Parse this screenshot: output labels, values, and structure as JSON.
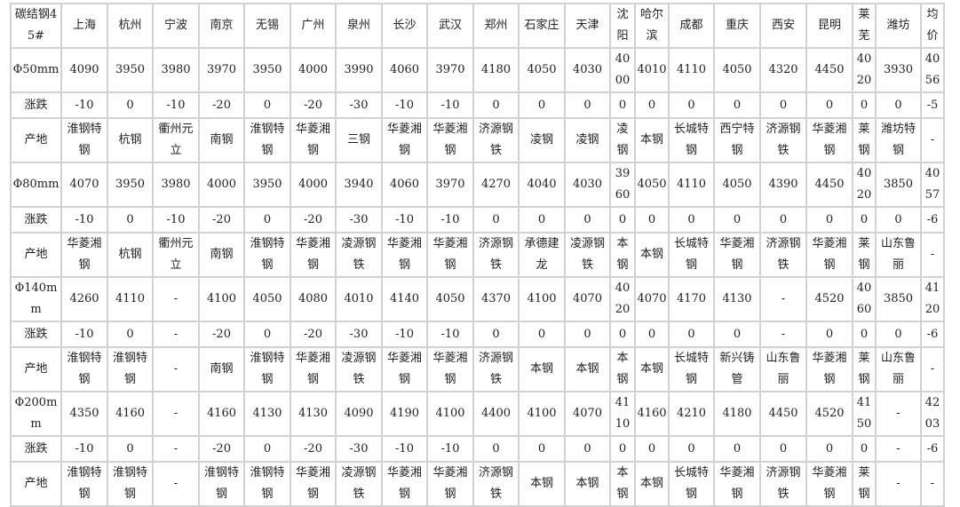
{
  "table": {
    "header": [
      "碳结钢45#",
      "上海",
      "杭州",
      "宁波",
      "南京",
      "无锡",
      "广州",
      "泉州",
      "长沙",
      "武汉",
      "郑州",
      "石家庄",
      "天津",
      "沈阳",
      "哈尔滨",
      "成都",
      "重庆",
      "西安",
      "昆明",
      "莱芜",
      "潍坊",
      "均价"
    ],
    "rows": [
      {
        "type": "price",
        "cells": [
          "Φ50mm",
          "4090",
          "3950",
          "3980",
          "3970",
          "3950",
          "4000",
          "3990",
          "4060",
          "3970",
          "4180",
          "4050",
          "4030",
          "4000",
          "4010",
          "4110",
          "4050",
          "4320",
          "4450",
          "4020",
          "3930",
          "4056"
        ]
      },
      {
        "type": "change",
        "cells": [
          "涨跌",
          "-10",
          "0",
          "-10",
          "-20",
          "0",
          "-20",
          "-30",
          "-10",
          "-10",
          "0",
          "0",
          "0",
          "0",
          "0",
          "0",
          "0",
          "0",
          "0",
          "0",
          "0",
          "-5"
        ]
      },
      {
        "type": "origin",
        "cells": [
          "产地",
          "淮钢特钢",
          "杭钢",
          "衢州元立",
          "南钢",
          "淮钢特钢",
          "华菱湘钢",
          "三钢",
          "华菱湘钢",
          "华菱湘钢",
          "济源钢铁",
          "凌钢",
          "凌钢",
          "凌钢",
          "本钢",
          "长城特钢",
          "西宁特钢",
          "济源钢铁",
          "华菱湘钢",
          "莱钢",
          "潍坊特钢",
          "-"
        ]
      },
      {
        "type": "price",
        "cells": [
          "Φ80mm",
          "4070",
          "3950",
          "3980",
          "4000",
          "3950",
          "4000",
          "3940",
          "4060",
          "3970",
          "4270",
          "4040",
          "4030",
          "3960",
          "4050",
          "4110",
          "4050",
          "4390",
          "4450",
          "4020",
          "3850",
          "4057"
        ]
      },
      {
        "type": "change",
        "cells": [
          "涨跌",
          "-10",
          "0",
          "-10",
          "-20",
          "0",
          "-20",
          "-30",
          "-10",
          "-10",
          "0",
          "0",
          "0",
          "0",
          "0",
          "0",
          "0",
          "0",
          "0",
          "0",
          "0",
          "-6"
        ]
      },
      {
        "type": "origin",
        "cells": [
          "产地",
          "华菱湘钢",
          "杭钢",
          "衢州元立",
          "南钢",
          "淮钢特钢",
          "华菱湘钢",
          "凌源钢铁",
          "华菱湘钢",
          "华菱湘钢",
          "济源钢铁",
          "承德建龙",
          "凌源钢铁",
          "本钢",
          "本钢",
          "长城特钢",
          "华菱湘钢",
          "济源钢铁",
          "华菱湘钢",
          "莱钢",
          "山东鲁丽",
          "-"
        ]
      },
      {
        "type": "price",
        "cells": [
          "Φ140mm",
          "4260",
          "4110",
          "-",
          "4100",
          "4050",
          "4080",
          "4010",
          "4140",
          "4050",
          "4370",
          "4100",
          "4070",
          "4020",
          "4070",
          "4170",
          "4130",
          "-",
          "4520",
          "4060",
          "3850",
          "4120"
        ]
      },
      {
        "type": "change",
        "cells": [
          "涨跌",
          "-10",
          "0",
          "-",
          "-20",
          "0",
          "-20",
          "-30",
          "-10",
          "-10",
          "0",
          "0",
          "0",
          "0",
          "0",
          "0",
          "0",
          "-",
          "0",
          "0",
          "0",
          "-6"
        ]
      },
      {
        "type": "origin",
        "cells": [
          "产地",
          "淮钢特钢",
          "淮钢特钢",
          "-",
          "南钢",
          "淮钢特钢",
          "华菱湘钢",
          "凌源钢铁",
          "华菱湘钢",
          "华菱湘钢",
          "济源钢铁",
          "本钢",
          "本钢",
          "本钢",
          "本钢",
          "长城特钢",
          "新兴铸管",
          "山东鲁丽",
          "华菱湘钢",
          "莱钢",
          "山东鲁丽",
          "-"
        ]
      },
      {
        "type": "price",
        "cells": [
          "Φ200mm",
          "4350",
          "4160",
          "-",
          "4160",
          "4130",
          "4130",
          "4090",
          "4190",
          "4100",
          "4400",
          "4100",
          "4070",
          "4110",
          "4160",
          "4210",
          "4180",
          "4450",
          "4520",
          "4150",
          "-",
          "4203"
        ]
      },
      {
        "type": "change",
        "cells": [
          "涨跌",
          "-10",
          "0",
          "-",
          "-20",
          "0",
          "-20",
          "-30",
          "-10",
          "-10",
          "0",
          "0",
          "0",
          "0",
          "0",
          "0",
          "0",
          "0",
          "0",
          "0",
          "-",
          "-6"
        ]
      },
      {
        "type": "origin",
        "cells": [
          "产地",
          "淮钢特钢",
          "淮钢特钢",
          "-",
          "淮钢特钢",
          "淮钢特钢",
          "华菱湘钢",
          "凌源钢铁",
          "华菱湘钢",
          "华菱湘钢",
          "济源钢铁",
          "本钢",
          "本钢",
          "本钢",
          "本钢",
          "长城特钢",
          "华菱湘钢",
          "济源钢铁",
          "华菱湘钢",
          "莱钢",
          "-",
          "-"
        ]
      }
    ]
  }
}
